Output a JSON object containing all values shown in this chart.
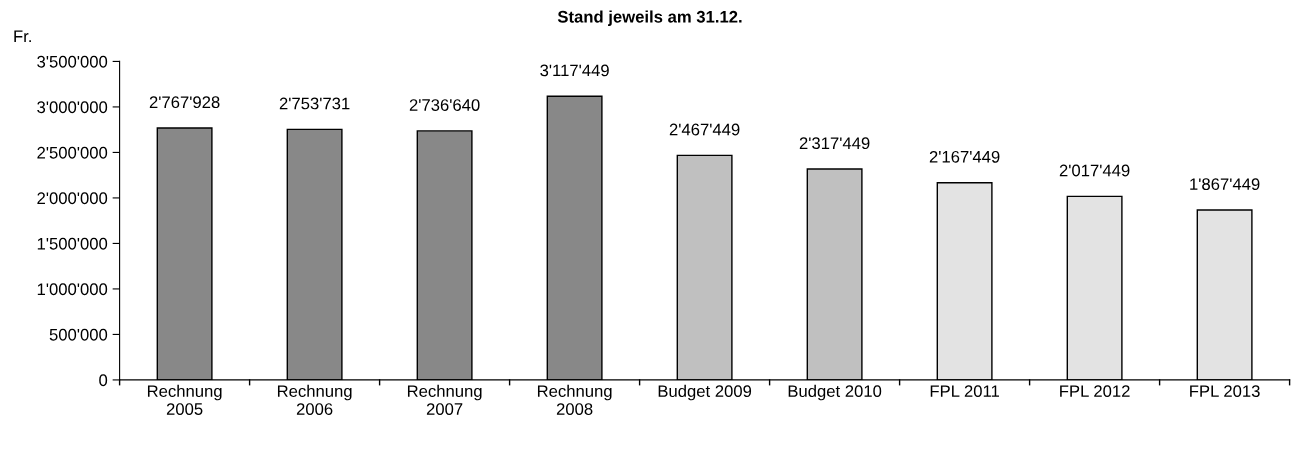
{
  "chart_data": {
    "type": "bar",
    "title": "Stand jeweils am 31.12.",
    "ylabel": "Fr.",
    "categories": [
      "Rechnung\n2005",
      "Rechnung\n2006",
      "Rechnung\n2007",
      "Rechnung\n2008",
      "Budget 2009",
      "Budget 2010",
      "FPL 2011",
      "FPL 2012",
      "FPL 2013"
    ],
    "values": [
      2767928,
      2753731,
      2736640,
      3117449,
      2467449,
      2317449,
      2167449,
      2017449,
      1867449
    ],
    "colors": [
      "#888888",
      "#888888",
      "#888888",
      "#888888",
      "#c0c0c0",
      "#c0c0c0",
      "#e3e3e3",
      "#e3e3e3",
      "#e3e3e3"
    ],
    "value_labels": [
      "2'767'928",
      "2'753'731",
      "2'736'640",
      "3'117'449",
      "2'467'449",
      "2'317'449",
      "2'167'449",
      "2'017'449",
      "1'867'449"
    ],
    "ylim": [
      0,
      3500000
    ],
    "yticks": [
      {
        "value": 0,
        "label": "0"
      },
      {
        "value": 500000,
        "label": "500'000"
      },
      {
        "value": 1000000,
        "label": "1'000'000"
      },
      {
        "value": 1500000,
        "label": "1'500'000"
      },
      {
        "value": 2000000,
        "label": "2'000'000"
      },
      {
        "value": 2500000,
        "label": "2'500'000"
      },
      {
        "value": 3000000,
        "label": "3'000'000"
      },
      {
        "value": 3500000,
        "label": "3'500'000"
      }
    ],
    "grid": false,
    "legend": false
  }
}
